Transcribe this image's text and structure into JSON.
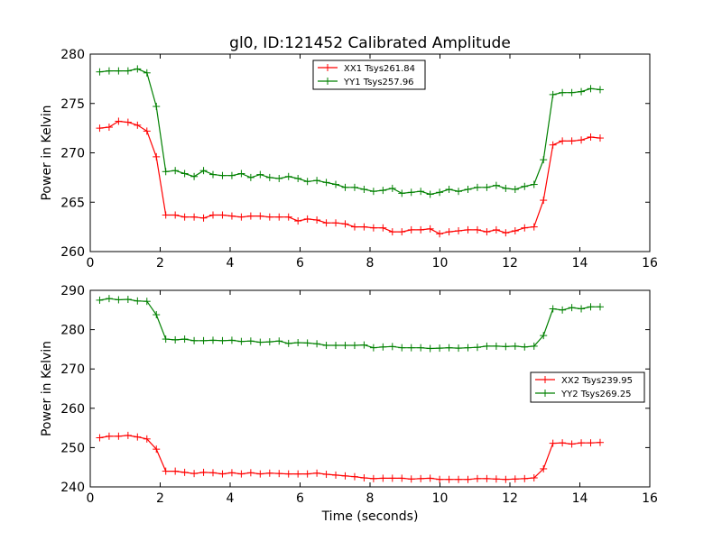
{
  "figure": {
    "title": "gl0, ID:121452 Calibrated Amplitude",
    "xlabel": "Time (seconds)"
  },
  "chart_data": [
    {
      "type": "line",
      "title": "gl0, ID:121452 Calibrated Amplitude",
      "xlabel": "",
      "ylabel": "Power in Kelvin",
      "xlim": [
        0,
        16
      ],
      "ylim": [
        260,
        280
      ],
      "xticks": [
        "0",
        "2",
        "4",
        "6",
        "8",
        "10",
        "12",
        "14",
        "16"
      ],
      "yticks": [
        "260",
        "265",
        "270",
        "275",
        "280"
      ],
      "grid": false,
      "legend_position": "top-center",
      "series": [
        {
          "name": "XX1 Tsys261.84",
          "color": "#ff0000",
          "marker": "+",
          "x": [
            0.27,
            0.54,
            0.81,
            1.08,
            1.35,
            1.62,
            1.89,
            2.16,
            2.43,
            2.7,
            2.97,
            3.24,
            3.51,
            3.78,
            4.05,
            4.32,
            4.59,
            4.86,
            5.13,
            5.4,
            5.67,
            5.94,
            6.21,
            6.48,
            6.75,
            7.02,
            7.29,
            7.56,
            7.83,
            8.1,
            8.37,
            8.64,
            8.91,
            9.18,
            9.45,
            9.72,
            9.99,
            10.26,
            10.53,
            10.8,
            11.07,
            11.34,
            11.61,
            11.88,
            12.15,
            12.42,
            12.69,
            12.96,
            13.23,
            13.5,
            13.77,
            14.04,
            14.31,
            14.58
          ],
          "y": [
            272.5,
            272.6,
            273.2,
            273.1,
            272.8,
            272.2,
            269.6,
            263.7,
            263.7,
            263.5,
            263.5,
            263.4,
            263.7,
            263.7,
            263.6,
            263.5,
            263.6,
            263.6,
            263.5,
            263.5,
            263.5,
            263.1,
            263.3,
            263.2,
            262.9,
            262.9,
            262.8,
            262.5,
            262.5,
            262.4,
            262.4,
            262.0,
            262.0,
            262.2,
            262.2,
            262.3,
            261.8,
            262.0,
            262.1,
            262.2,
            262.2,
            262.0,
            262.2,
            261.9,
            262.1,
            262.4,
            262.5,
            265.2,
            270.8,
            271.2,
            271.2,
            271.3,
            271.6,
            271.5
          ]
        },
        {
          "name": "YY1 Tsys257.96",
          "color": "#008000",
          "marker": "+",
          "x": [
            0.27,
            0.54,
            0.81,
            1.08,
            1.35,
            1.62,
            1.89,
            2.16,
            2.43,
            2.7,
            2.97,
            3.24,
            3.51,
            3.78,
            4.05,
            4.32,
            4.59,
            4.86,
            5.13,
            5.4,
            5.67,
            5.94,
            6.21,
            6.48,
            6.75,
            7.02,
            7.29,
            7.56,
            7.83,
            8.1,
            8.37,
            8.64,
            8.91,
            9.18,
            9.45,
            9.72,
            9.99,
            10.26,
            10.53,
            10.8,
            11.07,
            11.34,
            11.61,
            11.88,
            12.15,
            12.42,
            12.69,
            12.96,
            13.23,
            13.5,
            13.77,
            14.04,
            14.31,
            14.58
          ],
          "y": [
            278.2,
            278.3,
            278.3,
            278.3,
            278.5,
            278.1,
            274.7,
            268.1,
            268.2,
            267.9,
            267.6,
            268.2,
            267.8,
            267.7,
            267.7,
            267.9,
            267.5,
            267.8,
            267.5,
            267.4,
            267.6,
            267.4,
            267.1,
            267.2,
            267.0,
            266.8,
            266.5,
            266.5,
            266.3,
            266.1,
            266.2,
            266.4,
            265.9,
            266.0,
            266.1,
            265.8,
            266.0,
            266.3,
            266.1,
            266.3,
            266.5,
            266.5,
            266.7,
            266.4,
            266.3,
            266.6,
            266.8,
            269.3,
            275.9,
            276.1,
            276.1,
            276.2,
            276.5,
            276.4
          ]
        }
      ]
    },
    {
      "type": "line",
      "title": "",
      "xlabel": "Time (seconds)",
      "ylabel": "Power in Kelvin",
      "xlim": [
        0,
        16
      ],
      "ylim": [
        240,
        290
      ],
      "xticks": [
        "0",
        "2",
        "4",
        "6",
        "8",
        "10",
        "12",
        "14",
        "16"
      ],
      "yticks": [
        "240",
        "250",
        "260",
        "270",
        "280",
        "290"
      ],
      "grid": false,
      "legend_position": "center-right",
      "series": [
        {
          "name": "XX2 Tsys239.95",
          "color": "#ff0000",
          "marker": "+",
          "x": [
            0.27,
            0.54,
            0.81,
            1.08,
            1.35,
            1.62,
            1.89,
            2.16,
            2.43,
            2.7,
            2.97,
            3.24,
            3.51,
            3.78,
            4.05,
            4.32,
            4.59,
            4.86,
            5.13,
            5.4,
            5.67,
            5.94,
            6.21,
            6.48,
            6.75,
            7.02,
            7.29,
            7.56,
            7.83,
            8.1,
            8.37,
            8.64,
            8.91,
            9.18,
            9.45,
            9.72,
            9.99,
            10.26,
            10.53,
            10.8,
            11.07,
            11.34,
            11.61,
            11.88,
            12.15,
            12.42,
            12.69,
            12.96,
            13.23,
            13.5,
            13.77,
            14.04,
            14.31,
            14.58
          ],
          "y": [
            252.5,
            252.9,
            252.9,
            253.1,
            252.7,
            252.2,
            249.6,
            244.0,
            244.0,
            243.7,
            243.4,
            243.7,
            243.6,
            243.3,
            243.6,
            243.3,
            243.6,
            243.3,
            243.5,
            243.4,
            243.3,
            243.3,
            243.3,
            243.5,
            243.2,
            243.0,
            242.8,
            242.6,
            242.3,
            242.1,
            242.2,
            242.2,
            242.2,
            242.0,
            242.1,
            242.2,
            241.9,
            241.9,
            241.9,
            241.9,
            242.1,
            242.1,
            242.0,
            241.9,
            242.0,
            242.1,
            242.3,
            244.6,
            251.1,
            251.2,
            250.9,
            251.2,
            251.2,
            251.3
          ]
        },
        {
          "name": "YY2 Tsys269.25",
          "color": "#008000",
          "marker": "+",
          "x": [
            0.27,
            0.54,
            0.81,
            1.08,
            1.35,
            1.62,
            1.89,
            2.16,
            2.43,
            2.7,
            2.97,
            3.24,
            3.51,
            3.78,
            4.05,
            4.32,
            4.59,
            4.86,
            5.13,
            5.4,
            5.67,
            5.94,
            6.21,
            6.48,
            6.75,
            7.02,
            7.29,
            7.56,
            7.83,
            8.1,
            8.37,
            8.64,
            8.91,
            9.18,
            9.45,
            9.72,
            9.99,
            10.26,
            10.53,
            10.8,
            11.07,
            11.34,
            11.61,
            11.88,
            12.15,
            12.42,
            12.69,
            12.96,
            13.23,
            13.5,
            13.77,
            14.04,
            14.31,
            14.58
          ],
          "y": [
            287.5,
            287.9,
            287.6,
            287.7,
            287.3,
            287.2,
            283.8,
            277.6,
            277.4,
            277.6,
            277.2,
            277.2,
            277.3,
            277.2,
            277.3,
            277.0,
            277.1,
            276.8,
            276.9,
            277.1,
            276.5,
            276.7,
            276.6,
            276.4,
            276.0,
            276.0,
            276.0,
            276.0,
            276.1,
            275.4,
            275.6,
            275.7,
            275.4,
            275.4,
            275.4,
            275.2,
            275.3,
            275.4,
            275.3,
            275.4,
            275.5,
            275.8,
            275.8,
            275.7,
            275.8,
            275.6,
            275.8,
            278.5,
            285.3,
            285.0,
            285.6,
            285.3,
            285.8,
            285.8
          ]
        }
      ]
    }
  ]
}
